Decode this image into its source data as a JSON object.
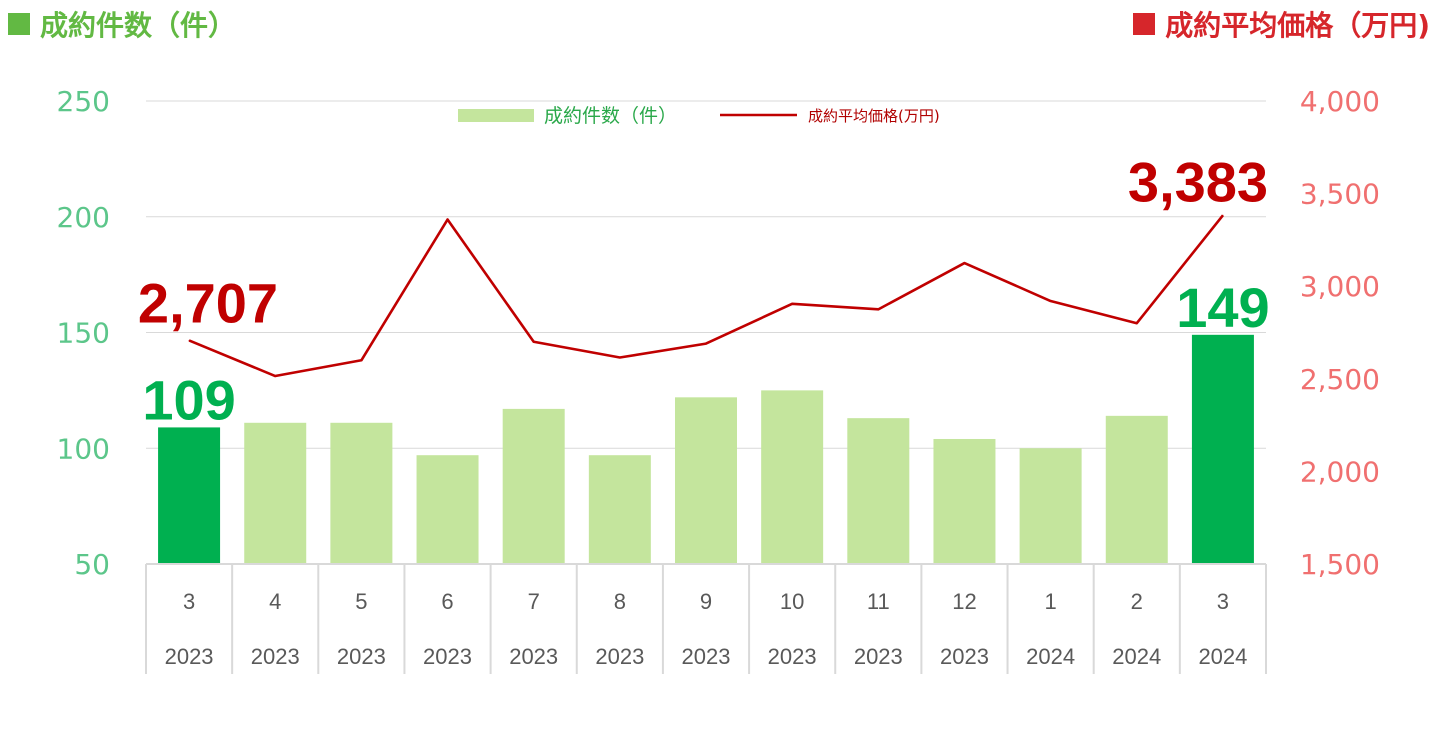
{
  "titles": {
    "left": "成約件数（件）",
    "right": "成約平均価格（万円)"
  },
  "colors": {
    "bar": "#c4e59d",
    "bar_highlight": "#00b050",
    "line": "#c00000",
    "grid": "#d9d9d9",
    "left_axis_text": "#5cc68a",
    "right_axis_text": "#f07070",
    "label_count": "#00b050",
    "label_price": "#c00000"
  },
  "chart_data": {
    "type": "bar",
    "categories": [
      {
        "month": "3",
        "year": "2023"
      },
      {
        "month": "4",
        "year": "2023"
      },
      {
        "month": "5",
        "year": "2023"
      },
      {
        "month": "6",
        "year": "2023"
      },
      {
        "month": "7",
        "year": "2023"
      },
      {
        "month": "8",
        "year": "2023"
      },
      {
        "month": "9",
        "year": "2023"
      },
      {
        "month": "10",
        "year": "2023"
      },
      {
        "month": "11",
        "year": "2023"
      },
      {
        "month": "12",
        "year": "2023"
      },
      {
        "month": "1",
        "year": "2024"
      },
      {
        "month": "2",
        "year": "2024"
      },
      {
        "month": "3",
        "year": "2024"
      }
    ],
    "series": [
      {
        "name": "成約件数（件）",
        "type": "bar",
        "axis": "left",
        "values": [
          109,
          111,
          111,
          97,
          117,
          97,
          122,
          125,
          113,
          104,
          100,
          114,
          149
        ],
        "highlight_indices": [
          0,
          12
        ]
      },
      {
        "name": "成約平均価格(万円)",
        "type": "line",
        "axis": "right",
        "values": [
          2707,
          2515,
          2600,
          3360,
          2700,
          2615,
          2690,
          2905,
          2875,
          3125,
          2920,
          2800,
          3383
        ]
      }
    ],
    "left_axis": {
      "ylim": [
        50,
        250
      ],
      "ticks": [
        "50",
        "100",
        "150",
        "200",
        "250"
      ]
    },
    "right_axis": {
      "ylim": [
        1500,
        4000
      ],
      "ticks": [
        "1,500",
        "2,000",
        "2,500",
        "3,000",
        "3,500",
        "4,000"
      ]
    },
    "grid": true,
    "legend": {
      "placement": "top-center",
      "entries": [
        "成約件数（件）",
        "成約平均価格(万円)"
      ]
    },
    "annotations": {
      "first_count": "109",
      "last_count": "149",
      "first_price": "2,707",
      "last_price": "3,383"
    }
  }
}
